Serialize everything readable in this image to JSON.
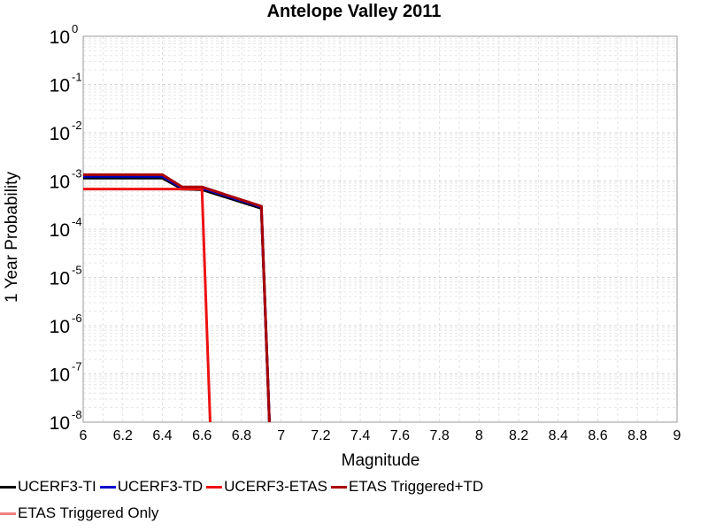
{
  "chart_data": {
    "type": "line",
    "title": "Antelope Valley 2011",
    "xlabel": "Magnitude",
    "ylabel": "1 Year Probability",
    "xlim": [
      6,
      9
    ],
    "ylim": [
      1e-08,
      1
    ],
    "yscale": "log",
    "grid": true,
    "legend_position": "bottom",
    "xticks": [
      "6",
      "6.2",
      "6.4",
      "6.6",
      "6.8",
      "7",
      "7.2",
      "7.4",
      "7.6",
      "7.8",
      "8",
      "8.2",
      "8.4",
      "8.6",
      "8.8",
      "9"
    ],
    "yticks": [
      {
        "base": "10",
        "exp": "0"
      },
      {
        "base": "10",
        "exp": "-1"
      },
      {
        "base": "10",
        "exp": "-2"
      },
      {
        "base": "10",
        "exp": "-3"
      },
      {
        "base": "10",
        "exp": "-4"
      },
      {
        "base": "10",
        "exp": "-5"
      },
      {
        "base": "10",
        "exp": "-6"
      },
      {
        "base": "10",
        "exp": "-7"
      },
      {
        "base": "10",
        "exp": "-8"
      }
    ],
    "series": [
      {
        "name": "UCERF3-TI",
        "color": "#000000",
        "x": [
          6.0,
          6.4,
          6.5,
          6.6,
          6.9,
          6.95
        ],
        "y": [
          0.00115,
          0.00115,
          0.00068,
          0.00066,
          0.00027,
          1e-09
        ]
      },
      {
        "name": "UCERF3-TD",
        "color": "#0000cc",
        "x": [
          6.0,
          6.4,
          6.5,
          6.6,
          6.9,
          6.95
        ],
        "y": [
          0.00125,
          0.00125,
          0.00071,
          0.00071,
          0.00029,
          1e-09
        ]
      },
      {
        "name": "UCERF3-ETAS",
        "color": "#ee1111",
        "x": [
          6.0,
          6.6,
          6.65
        ],
        "y": [
          0.00068,
          0.00068,
          1e-09
        ]
      },
      {
        "name": "ETAS Triggered+TD",
        "color": "#aa0000",
        "x": [
          6.0,
          6.4,
          6.5,
          6.6,
          6.9,
          6.95
        ],
        "y": [
          0.00135,
          0.00135,
          0.00075,
          0.00075,
          0.0003,
          1e-09
        ]
      },
      {
        "name": "ETAS Triggered Only",
        "color": "#f08080",
        "x": [],
        "y": []
      }
    ]
  }
}
